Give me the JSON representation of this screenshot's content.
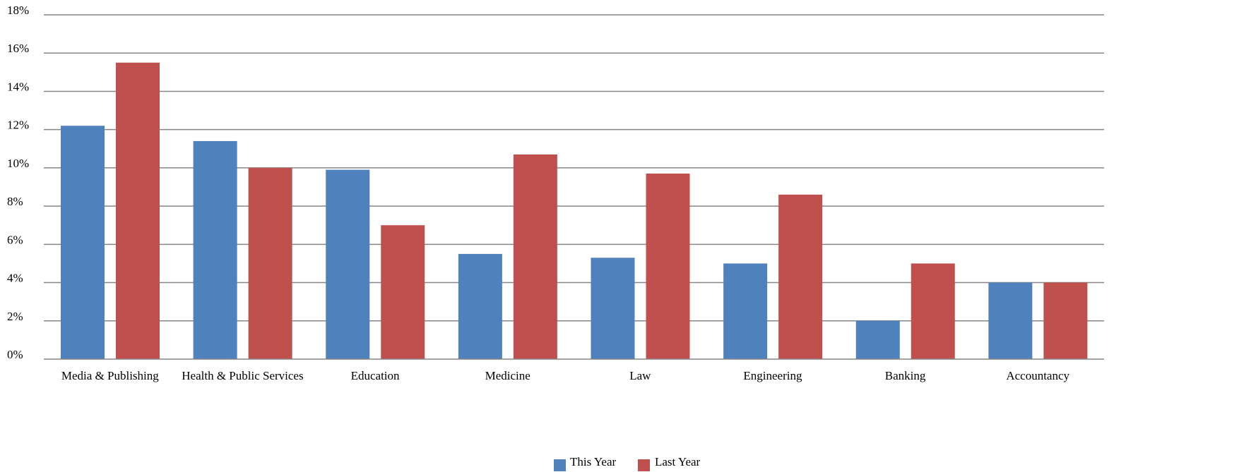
{
  "chart_data": {
    "type": "bar",
    "categories": [
      "Media & Publishing",
      "Health & Public Services",
      "Education",
      "Medicine",
      "Law",
      "Engineering",
      "Banking",
      "Accountancy"
    ],
    "series": [
      {
        "name": "This Year",
        "color": "#4F81BD",
        "values": [
          12.2,
          11.4,
          9.9,
          5.5,
          5.3,
          5.0,
          2.0,
          4.0
        ]
      },
      {
        "name": "Last Year",
        "color": "#C0504D",
        "values": [
          15.5,
          10.0,
          7.0,
          10.7,
          9.7,
          8.6,
          5.0,
          4.0
        ]
      }
    ],
    "yticks": [
      "0%",
      "2%",
      "4%",
      "6%",
      "8%",
      "10%",
      "12%",
      "14%",
      "16%",
      "18%"
    ],
    "ylim": [
      0,
      18
    ],
    "ystep": 2,
    "grid": true,
    "legend_position": "bottom",
    "gridline_color": "#868686",
    "title": "",
    "xlabel": "",
    "ylabel": ""
  }
}
